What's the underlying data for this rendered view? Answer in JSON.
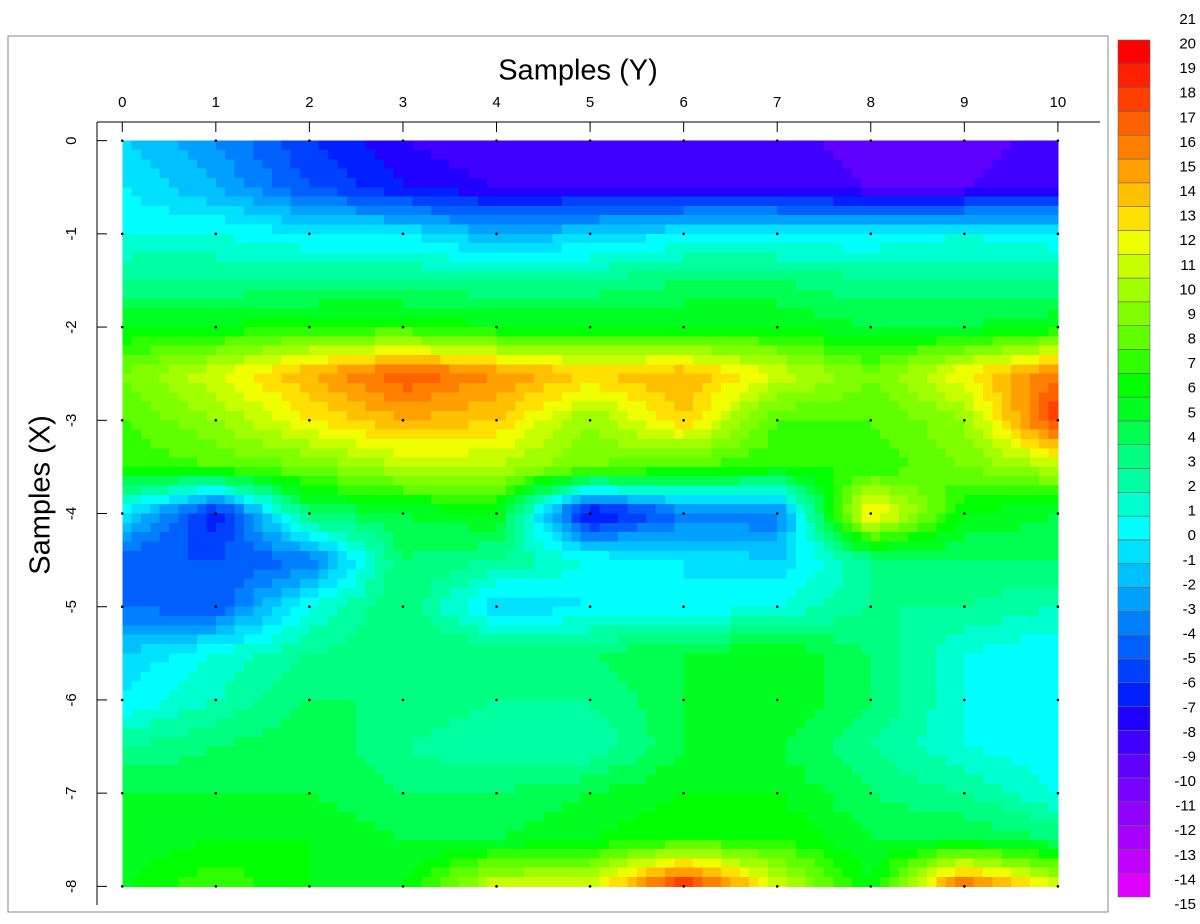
{
  "chart_data": {
    "type": "contour",
    "xlabel": "Samples (Y)",
    "ylabel": "Samples (X)",
    "x": [
      0,
      1,
      2,
      3,
      4,
      5,
      6,
      7,
      8,
      9,
      10
    ],
    "y": [
      0,
      -0.5,
      -1,
      -1.5,
      -2,
      -2.5,
      -3,
      -3.5,
      -4,
      -4.5,
      -5,
      -5.5,
      -6,
      -6.5,
      -7,
      -7.5,
      -8
    ],
    "z": [
      [
        -1,
        -3,
        -6,
        -8,
        -9,
        -9,
        -9,
        -8,
        -10,
        -10,
        -8
      ],
      [
        0,
        -2,
        -5,
        -7,
        -8,
        -8,
        -8,
        -8,
        -9,
        -9,
        -8
      ],
      [
        1,
        1,
        0,
        0,
        -2,
        -1,
        0,
        0,
        0,
        1,
        0
      ],
      [
        3,
        3,
        3,
        3,
        3,
        3,
        4,
        4,
        3,
        3,
        3
      ],
      [
        6,
        6,
        7,
        7,
        6,
        6,
        6,
        6,
        5,
        5,
        6
      ],
      [
        9,
        12,
        15,
        18,
        16,
        14,
        15,
        12,
        9,
        13,
        17
      ],
      [
        8,
        10,
        13,
        15,
        14,
        10,
        14,
        8,
        8,
        10,
        19
      ],
      [
        7,
        8,
        9,
        11,
        11,
        9,
        8,
        7,
        7,
        9,
        11
      ],
      [
        0,
        -7,
        4,
        5,
        6,
        -8,
        -4,
        -4,
        14,
        6,
        5
      ],
      [
        -5,
        -5,
        -4,
        4,
        3,
        1,
        0,
        -1,
        3,
        4,
        4
      ],
      [
        -4,
        -5,
        1,
        4,
        -1,
        0,
        0,
        1,
        3,
        3,
        2
      ],
      [
        -1,
        1,
        3,
        4,
        4,
        4,
        5,
        6,
        4,
        1,
        0
      ],
      [
        0,
        2,
        4,
        4,
        3,
        3,
        5,
        6,
        4,
        1,
        0
      ],
      [
        3,
        4,
        5,
        3,
        2,
        2,
        5,
        5,
        3,
        1,
        0
      ],
      [
        5,
        5,
        5,
        4,
        4,
        5,
        6,
        6,
        4,
        3,
        1
      ],
      [
        5,
        6,
        6,
        5,
        5,
        6,
        7,
        7,
        5,
        5,
        4
      ],
      [
        6,
        8,
        6,
        6,
        12,
        12,
        20,
        12,
        6,
        18,
        12
      ]
    ],
    "xlim": [
      -0.27,
      10.45
    ],
    "ylim": [
      -8.2,
      0.2
    ],
    "xticks": [
      0,
      1,
      2,
      3,
      4,
      5,
      6,
      7,
      8,
      9,
      10
    ],
    "yticks": [
      0,
      -1,
      -2,
      -3,
      -4,
      -5,
      -6,
      -7,
      -8
    ],
    "levels": [
      -15,
      -14,
      -13,
      -12,
      -11,
      -10,
      -9,
      -8,
      -7,
      -6,
      -5,
      -4,
      -3,
      -2,
      -1,
      0,
      1,
      2,
      3,
      4,
      5,
      6,
      7,
      8,
      9,
      10,
      11,
      12,
      13,
      14,
      15,
      16,
      17,
      18,
      19,
      20,
      21
    ],
    "level_colors": [
      "#e000ff",
      "#c000ff",
      "#a800ff",
      "#9000ff",
      "#7800ff",
      "#6000ff",
      "#4000ff",
      "#2000ff",
      "#0020ff",
      "#0040ff",
      "#0060ff",
      "#0080ff",
      "#00a0ff",
      "#00c0ff",
      "#00e0ff",
      "#00ffff",
      "#00ffd0",
      "#00ffa0",
      "#00ff80",
      "#00ff50",
      "#00ff20",
      "#00ff00",
      "#30ff00",
      "#60ff00",
      "#80ff00",
      "#a0ff00",
      "#c8ff00",
      "#f0ff00",
      "#ffe000",
      "#ffc000",
      "#ffa000",
      "#ff8000",
      "#ff6000",
      "#ff4000",
      "#ff2000",
      "#ff0000"
    ]
  }
}
